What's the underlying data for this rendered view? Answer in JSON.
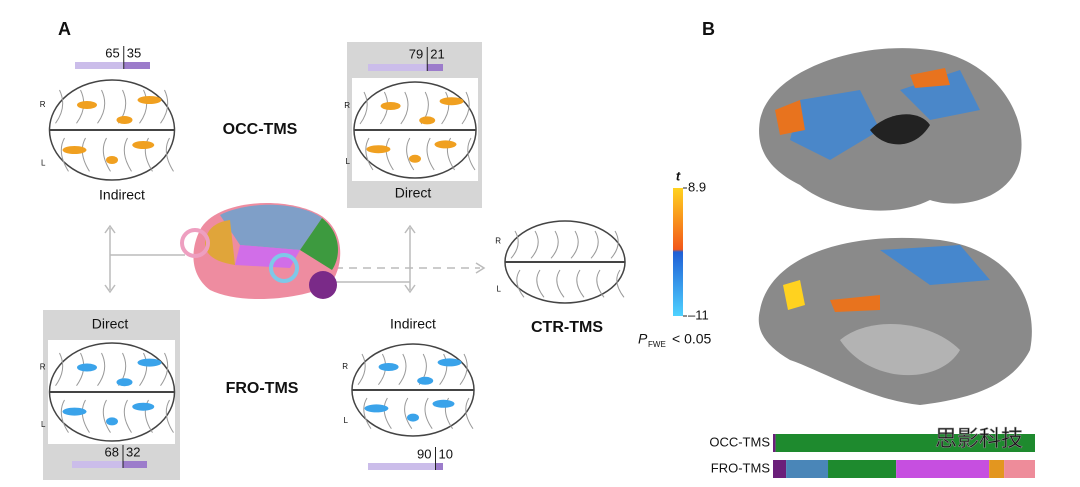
{
  "panel_a": {
    "label": "A",
    "occ_label": "OCC-TMS",
    "fro_label": "FRO-TMS",
    "ctr_label": "CTR-TMS",
    "orientation": [
      "R",
      "L"
    ],
    "maps": [
      {
        "caption": "Indirect",
        "split": [
          65,
          35
        ]
      },
      {
        "caption": "Direct",
        "split": [
          79,
          21
        ]
      },
      {
        "caption": "Direct",
        "split": [
          68,
          32
        ]
      },
      {
        "caption": "Indirect",
        "split": [
          90,
          10
        ]
      }
    ]
  },
  "colorbar": {
    "symbol": "t",
    "max": 8.9,
    "min": {
      "value": -11,
      "label": "–11"
    },
    "threshold_symbol": "P",
    "threshold_sub": "FWE",
    "threshold_text": "< 0.05"
  },
  "panel_b": {
    "label": "B",
    "bars": [
      {
        "name": "OCC-TMS",
        "segments": [
          {
            "color": "#6b1f7a",
            "value": 1
          },
          {
            "color": "#1e8a2e",
            "value": 99
          }
        ]
      },
      {
        "name": "FRO-TMS",
        "segments": [
          {
            "color": "#6b1f7a",
            "value": 5
          },
          {
            "color": "#4a86b8",
            "value": 16
          },
          {
            "color": "#1e8a2e",
            "value": 26
          },
          {
            "color": "#c64fe0",
            "value": 35.5
          },
          {
            "color": "#e3961f",
            "value": 5.7
          },
          {
            "color": "#ee8c9a",
            "value": 11.8
          }
        ]
      }
    ]
  },
  "watermark": "思影科技"
}
